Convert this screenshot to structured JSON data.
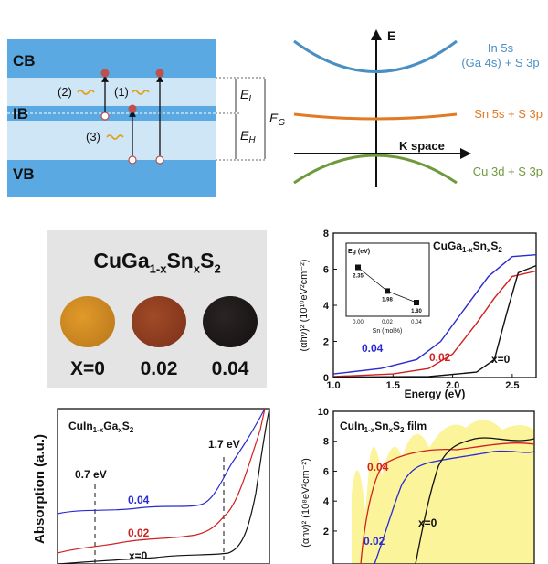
{
  "band_diagram": {
    "cb": "CB",
    "ib": "IB",
    "vb": "VB",
    "t1": "(1)",
    "t2": "(2)",
    "t3": "(3)",
    "el": "E",
    "el_sub": "L",
    "eh": "E",
    "eh_sub": "H",
    "eg": "E",
    "eg_sub": "G"
  },
  "orbital_diagram": {
    "e_axis": "E",
    "k_axis": "K space",
    "top_a": "In 5s",
    "top_b": "(Ga 4s)",
    "top_c": "+ S 3p",
    "mid": "Sn 5s + S 3p",
    "bot": "Cu 3d + S 3p",
    "colors": {
      "top": "#4a8fc4",
      "mid": "#e07a25",
      "bot": "#6f9a3c"
    }
  },
  "photo": {
    "title_main": "CuGa",
    "title_sub1": "1-x",
    "title_mid": "Sn",
    "title_sub2": "x",
    "title_end": "S",
    "title_sub3": "2",
    "labels": [
      "X=0",
      "0.02",
      "0.04"
    ],
    "disk_colors": [
      "#c98a1f",
      "#8a3a20",
      "#1e1a1a"
    ]
  },
  "chart_tauc1": {
    "ylabel": "(αhν)² (10¹⁰eV²cm⁻²)",
    "xlabel": "Energy (eV)",
    "legend": "CuGa1-xSnxS2",
    "curve_labels": [
      "0.04",
      "0.02",
      "x=0"
    ],
    "inset": {
      "ylabel": "Eg (eV)",
      "xlabel": "Sn (mol%)"
    }
  },
  "chart_absorption": {
    "ylabel": "Absorption (a.u.)",
    "legend": "CuIn1-xGaxS2",
    "ann1": "0.7 eV",
    "ann2": "1.7 eV",
    "curve_labels": [
      "0.04",
      "0.02",
      "x=0"
    ]
  },
  "chart_tauc2": {
    "ylabel": "(αhν)² (10⁸eV²cm⁻²)",
    "legend": "CuIn1-xSnxS2 film",
    "curve_labels": [
      "0.04",
      "0.02",
      "x=0"
    ]
  },
  "chart_data": [
    {
      "type": "line",
      "title": "CuGa1-xSnxS2",
      "xlabel": "Energy (eV)",
      "ylabel": "(αhν)² (10¹⁰eV²cm⁻²)",
      "xlim": [
        1.0,
        2.7
      ],
      "ylim": [
        0,
        8
      ],
      "xticks": [
        "1.0",
        "1.5",
        "2.0",
        "2.5"
      ],
      "yticks": [
        "0",
        "2",
        "4",
        "6",
        "8"
      ],
      "series": [
        {
          "name": "0.04",
          "color": "#2b2bd0",
          "points": [
            [
              1.0,
              0.2
            ],
            [
              1.4,
              0.5
            ],
            [
              1.7,
              1.0
            ],
            [
              1.9,
              2.0
            ],
            [
              2.1,
              3.8
            ],
            [
              2.3,
              5.6
            ],
            [
              2.5,
              6.7
            ],
            [
              2.7,
              6.8
            ]
          ]
        },
        {
          "name": "0.02",
          "color": "#d02020",
          "points": [
            [
              1.0,
              0.05
            ],
            [
              1.5,
              0.2
            ],
            [
              1.8,
              0.5
            ],
            [
              2.0,
              1.3
            ],
            [
              2.2,
              3.0
            ],
            [
              2.35,
              4.4
            ],
            [
              2.5,
              5.6
            ],
            [
              2.7,
              5.9
            ]
          ]
        },
        {
          "name": "x=0",
          "color": "#111111",
          "points": [
            [
              1.0,
              0.02
            ],
            [
              1.8,
              0.05
            ],
            [
              2.2,
              0.3
            ],
            [
              2.35,
              1.0
            ],
            [
              2.45,
              3.5
            ],
            [
              2.55,
              5.8
            ],
            [
              2.7,
              6.2
            ]
          ]
        }
      ],
      "inset": {
        "type": "scatter",
        "xlabel": "Sn (mol%)",
        "ylabel": "Eg (eV)",
        "x": [
          0.0,
          0.02,
          0.04
        ],
        "y": [
          2.35,
          1.98,
          1.8
        ],
        "point_labels": [
          "2.35",
          "1.98",
          "1.80"
        ],
        "xticks": [
          "0.00",
          "0.02",
          "0.04"
        ]
      }
    },
    {
      "type": "line",
      "title": "CuIn1-xGaxS2",
      "ylabel": "Absorption (a.u.)",
      "annotations": [
        "0.7 eV",
        "1.7 eV"
      ],
      "series": [
        {
          "name": "0.04",
          "color": "#2b2bd0",
          "trend": "highest baseline, rising strongly at 1.7 eV"
        },
        {
          "name": "0.02",
          "color": "#d02020",
          "trend": "middle baseline, rising at 1.7 eV"
        },
        {
          "name": "x=0",
          "color": "#111111",
          "trend": "lowest baseline, sharp rise beyond 1.7 eV"
        }
      ]
    },
    {
      "type": "line",
      "title": "CuIn1-xSnxS2 film",
      "ylabel": "(αhν)² (10⁸eV²cm⁻²)",
      "ylim": [
        0,
        10
      ],
      "yticks": [
        "2",
        "4",
        "6",
        "8",
        "10"
      ],
      "series": [
        {
          "name": "0.04",
          "color": "#d02020",
          "trend": "early rise, plateau ~7.5"
        },
        {
          "name": "0.02",
          "color": "#2b2bd0",
          "trend": "middle rise, plateau ~7"
        },
        {
          "name": "x=0",
          "color": "#111111",
          "trend": "late rise, plateau ~8"
        }
      ]
    }
  ]
}
